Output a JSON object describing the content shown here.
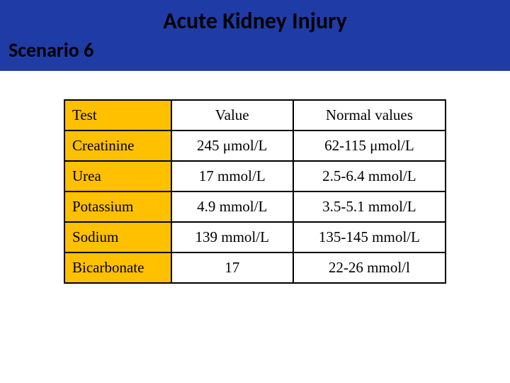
{
  "header": {
    "title": "Acute Kidney Injury",
    "scenario": "Scenario 6"
  },
  "table": {
    "headers": {
      "test": "Test",
      "value": "Value",
      "normal": "Normal values"
    },
    "rows": [
      {
        "test": "Creatinine",
        "value": "245 μmol/L",
        "normal": "62-115 μmol/L"
      },
      {
        "test": "Urea",
        "value": "17 mmol/L",
        "normal": "2.5-6.4 mmol/L"
      },
      {
        "test": "Potassium",
        "value": "4.9 mmol/L",
        "normal": "3.5-5.1 mmol/L"
      },
      {
        "test": "Sodium",
        "value": "139 mmol/L",
        "normal": "135-145 mmol/L"
      },
      {
        "test": "Bicarbonate",
        "value": "17",
        "normal": "22-26 mmol/l"
      }
    ]
  },
  "colors": {
    "header_bg": "#1f3ca6",
    "test_col_bg": "#ffc000",
    "border": "#000000",
    "text": "#000000",
    "page_bg": "#ffffff"
  }
}
